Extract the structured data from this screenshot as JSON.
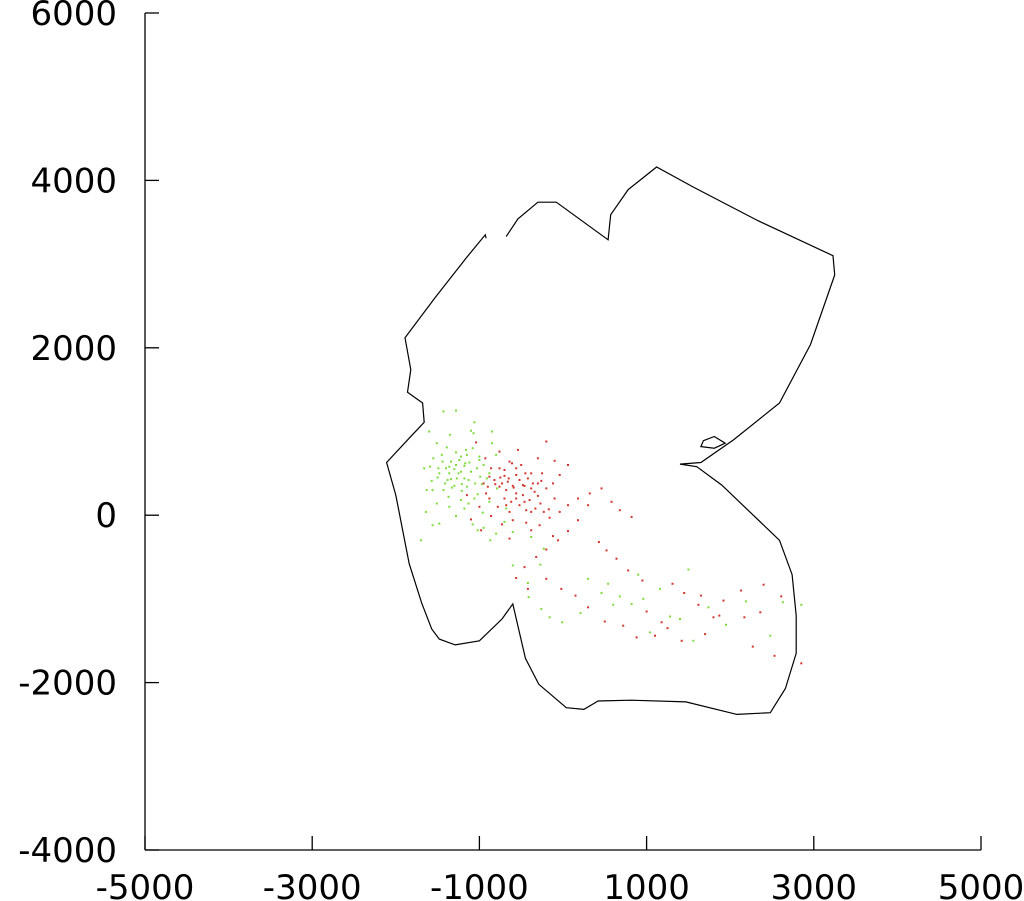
{
  "chart_data": {
    "type": "scatter",
    "title": "",
    "xlabel": "",
    "ylabel": "",
    "xlim": [
      -5000,
      5000
    ],
    "ylim": [
      -4000,
      6000
    ],
    "x_ticks": [
      -5000,
      -3000,
      -1000,
      1000,
      3000,
      5000
    ],
    "x_tick_labels": [
      "-5000",
      "-3000",
      "-1000",
      "1000",
      "3000",
      "5000"
    ],
    "y_ticks": [
      -4000,
      -2000,
      0,
      2000,
      4000,
      6000
    ],
    "y_tick_labels": [
      "-4000",
      "-2000",
      "0",
      "2000",
      "4000",
      "6000"
    ],
    "grid": false,
    "legend": false,
    "colors": {
      "axis": "#000000",
      "outline": "#000000",
      "series_green": "#7ddc3c",
      "series_red": "#d2362e"
    },
    "outline": [
      [
        -680,
        3330
      ],
      [
        -540,
        3540
      ],
      [
        -300,
        3740
      ],
      [
        -80,
        3740
      ],
      [
        540,
        3290
      ],
      [
        570,
        3590
      ],
      [
        780,
        3890
      ],
      [
        1120,
        4160
      ],
      [
        1560,
        3920
      ],
      [
        2330,
        3520
      ],
      [
        3230,
        3100
      ],
      [
        3250,
        2870
      ],
      [
        2960,
        2040
      ],
      [
        2590,
        1340
      ],
      [
        2040,
        900
      ],
      [
        1650,
        630
      ],
      [
        1400,
        610
      ],
      [
        1600,
        580
      ],
      [
        1900,
        360
      ],
      [
        2590,
        -300
      ],
      [
        2740,
        -710
      ],
      [
        2790,
        -1200
      ],
      [
        2790,
        -1650
      ],
      [
        2660,
        -2070
      ],
      [
        2480,
        -2360
      ],
      [
        2080,
        -2380
      ],
      [
        1470,
        -2230
      ],
      [
        810,
        -2210
      ],
      [
        420,
        -2220
      ],
      [
        250,
        -2320
      ],
      [
        40,
        -2300
      ],
      [
        -290,
        -2020
      ],
      [
        -450,
        -1710
      ],
      [
        -600,
        -1060
      ],
      [
        -730,
        -1240
      ],
      [
        -1000,
        -1500
      ],
      [
        -1290,
        -1550
      ],
      [
        -1480,
        -1480
      ],
      [
        -1570,
        -1360
      ],
      [
        -1690,
        -1050
      ],
      [
        -1840,
        -580
      ],
      [
        -2000,
        240
      ],
      [
        -2110,
        630
      ],
      [
        -1840,
        920
      ],
      [
        -1660,
        1110
      ],
      [
        -1680,
        1340
      ],
      [
        -1860,
        1470
      ],
      [
        -1820,
        1740
      ],
      [
        -1890,
        2120
      ],
      [
        -1530,
        2600
      ],
      [
        -1160,
        3070
      ],
      [
        -930,
        3350
      ],
      [
        -920,
        3310
      ]
    ],
    "hole": [
      [
        1680,
        890
      ],
      [
        1810,
        940
      ],
      [
        1940,
        860
      ],
      [
        1810,
        800
      ],
      [
        1650,
        820
      ]
    ],
    "series": [
      {
        "values": [
          [
            -1600,
            1000
          ],
          [
            -1430,
            1240
          ],
          [
            -1280,
            1250
          ],
          [
            -1060,
            1110
          ],
          [
            -1160,
            780
          ],
          [
            -1390,
            810
          ],
          [
            -1550,
            680
          ],
          [
            -1660,
            560
          ],
          [
            -1490,
            560
          ],
          [
            -1360,
            500
          ],
          [
            -1570,
            410
          ],
          [
            -1630,
            300
          ],
          [
            -1370,
            220
          ],
          [
            -1510,
            140
          ],
          [
            -1640,
            40
          ],
          [
            -1700,
            -300
          ],
          [
            -1280,
            600
          ],
          [
            -1300,
            350
          ],
          [
            -1340,
            640
          ],
          [
            -1450,
            720
          ],
          [
            -1210,
            290
          ],
          [
            -1180,
            590
          ],
          [
            -1130,
            420
          ],
          [
            -1060,
            200
          ],
          [
            -970,
            370
          ],
          [
            -950,
            600
          ],
          [
            -880,
            500
          ],
          [
            -1000,
            660
          ],
          [
            -1150,
            720
          ],
          [
            -1380,
            420
          ],
          [
            -1430,
            300
          ],
          [
            -1180,
            80
          ],
          [
            -1280,
            -10
          ],
          [
            -1480,
            -100
          ],
          [
            -1560,
            -120
          ],
          [
            -1080,
            -110
          ],
          [
            -950,
            -150
          ],
          [
            -870,
            -300
          ],
          [
            -1020,
            -180
          ],
          [
            -800,
            720
          ],
          [
            -850,
            860
          ],
          [
            -1070,
            980
          ],
          [
            -1350,
            960
          ],
          [
            -1510,
            860
          ],
          [
            -1220,
            520
          ],
          [
            -1100,
            520
          ],
          [
            -1340,
            430
          ],
          [
            -1400,
            560
          ],
          [
            -1240,
            660
          ],
          [
            -1500,
            450
          ],
          [
            -1270,
            440
          ],
          [
            -1180,
            440
          ],
          [
            -1120,
            630
          ],
          [
            -1440,
            640
          ],
          [
            -1280,
            750
          ],
          [
            -1030,
            560
          ],
          [
            -910,
            440
          ],
          [
            -1210,
            370
          ],
          [
            -1330,
            330
          ],
          [
            -1150,
            340
          ],
          [
            -1050,
            380
          ],
          [
            -990,
            460
          ],
          [
            -1360,
            580
          ],
          [
            -1220,
            700
          ],
          [
            -1080,
            800
          ],
          [
            -1590,
            580
          ],
          [
            -1480,
            500
          ],
          [
            -1560,
            300
          ],
          [
            -1220,
            180
          ],
          [
            -1130,
            140
          ],
          [
            -1020,
            250
          ],
          [
            -1360,
            100
          ],
          [
            -1250,
            500
          ],
          [
            -1410,
            380
          ],
          [
            -1170,
            620
          ],
          [
            -1300,
            550
          ],
          [
            -1000,
            700
          ],
          [
            -790,
            320
          ],
          [
            -380,
            -260
          ],
          [
            -230,
            -400
          ],
          [
            -270,
            -590
          ],
          [
            -420,
            -810
          ],
          [
            -410,
            -980
          ],
          [
            -260,
            -1120
          ],
          [
            -160,
            -1220
          ],
          [
            -10,
            -1280
          ],
          [
            210,
            -1170
          ],
          [
            460,
            -930
          ],
          [
            820,
            -1060
          ],
          [
            960,
            -1000
          ],
          [
            1160,
            -880
          ],
          [
            1280,
            -1210
          ],
          [
            1560,
            -1500
          ],
          [
            1950,
            -1310
          ],
          [
            2190,
            -1030
          ],
          [
            2480,
            -1440
          ],
          [
            2630,
            -1040
          ],
          [
            2850,
            -1070
          ],
          [
            1740,
            -1100
          ],
          [
            1400,
            -1240
          ],
          [
            1040,
            -1400
          ],
          [
            680,
            -970
          ],
          [
            540,
            -820
          ],
          [
            1500,
            -650
          ],
          [
            900,
            -710
          ],
          [
            600,
            -1070
          ],
          [
            300,
            -760
          ],
          [
            -700,
            -80
          ],
          [
            -600,
            -200
          ],
          [
            -800,
            -220
          ],
          [
            -960,
            30
          ],
          [
            -680,
            80
          ],
          [
            -880,
            160
          ],
          [
            -600,
            -600
          ],
          [
            -850,
            1000
          ],
          [
            -1100,
            1010
          ]
        ]
      },
      {
        "values": [
          [
            -1040,
            870
          ],
          [
            -930,
            680
          ],
          [
            -760,
            560
          ],
          [
            -640,
            640
          ],
          [
            -560,
            480
          ],
          [
            -460,
            350
          ],
          [
            -340,
            280
          ],
          [
            -270,
            140
          ],
          [
            -170,
            70
          ],
          [
            -100,
            200
          ],
          [
            -260,
            410
          ],
          [
            -380,
            500
          ],
          [
            -500,
            600
          ],
          [
            -650,
            440
          ],
          [
            -760,
            340
          ],
          [
            -880,
            200
          ],
          [
            -1000,
            100
          ],
          [
            -950,
            380
          ],
          [
            -700,
            200
          ],
          [
            -600,
            350
          ],
          [
            -480,
            240
          ],
          [
            -520,
            120
          ],
          [
            -640,
            40
          ],
          [
            -780,
            100
          ],
          [
            -820,
            420
          ],
          [
            -700,
            540
          ],
          [
            -560,
            560
          ],
          [
            -420,
            440
          ],
          [
            -300,
            380
          ],
          [
            -400,
            180
          ],
          [
            -560,
            260
          ],
          [
            -680,
            300
          ],
          [
            -750,
            450
          ],
          [
            -860,
            560
          ],
          [
            -620,
            160
          ],
          [
            -480,
            360
          ],
          [
            -380,
            320
          ],
          [
            -440,
            60
          ],
          [
            -330,
            80
          ],
          [
            -200,
            320
          ],
          [
            -120,
            380
          ],
          [
            -40,
            480
          ],
          [
            60,
            600
          ],
          [
            -100,
            650
          ],
          [
            -250,
            500
          ],
          [
            -860,
            -10
          ],
          [
            -730,
            -110
          ],
          [
            -600,
            -60
          ],
          [
            -440,
            -90
          ],
          [
            -280,
            -120
          ],
          [
            -160,
            -30
          ],
          [
            -40,
            40
          ],
          [
            60,
            120
          ],
          [
            180,
            200
          ],
          [
            320,
            260
          ],
          [
            460,
            320
          ],
          [
            580,
            160
          ],
          [
            680,
            60
          ],
          [
            820,
            -20
          ],
          [
            300,
            120
          ],
          [
            180,
            -60
          ],
          [
            60,
            -190
          ],
          [
            -60,
            -300
          ],
          [
            -200,
            -410
          ],
          [
            -320,
            -500
          ],
          [
            -460,
            -620
          ],
          [
            -560,
            -750
          ],
          [
            -420,
            -880
          ],
          [
            -200,
            -760
          ],
          [
            -20,
            -880
          ],
          [
            150,
            -960
          ],
          [
            300,
            -1100
          ],
          [
            500,
            -1270
          ],
          [
            720,
            -1320
          ],
          [
            880,
            -1460
          ],
          [
            1100,
            -1440
          ],
          [
            1250,
            -1350
          ],
          [
            1420,
            -1500
          ],
          [
            1700,
            -1420
          ],
          [
            1870,
            -1200
          ],
          [
            1920,
            -1020
          ],
          [
            2130,
            -900
          ],
          [
            2400,
            -830
          ],
          [
            2610,
            -970
          ],
          [
            2360,
            -1160
          ],
          [
            2170,
            -1220
          ],
          [
            950,
            -780
          ],
          [
            780,
            -660
          ],
          [
            640,
            -520
          ],
          [
            520,
            -420
          ],
          [
            430,
            -320
          ],
          [
            1310,
            -820
          ],
          [
            1450,
            -930
          ],
          [
            1620,
            -1070
          ],
          [
            1800,
            -1220
          ],
          [
            1000,
            -1150
          ],
          [
            2270,
            -1570
          ],
          [
            2530,
            -1680
          ],
          [
            2850,
            -1770
          ],
          [
            1180,
            -1280
          ],
          [
            1650,
            -960
          ],
          [
            -980,
            -180
          ],
          [
            -920,
            260
          ],
          [
            -640,
            -280
          ],
          [
            -380,
            -180
          ],
          [
            -120,
            -250
          ],
          [
            -540,
            780
          ],
          [
            -300,
            680
          ],
          [
            -200,
            880
          ],
          [
            -760,
            760
          ],
          [
            -1100,
            -50
          ],
          [
            -1150,
            240
          ],
          [
            -880,
            460
          ],
          [
            -810,
            370
          ],
          [
            -730,
            380
          ],
          [
            -660,
            400
          ],
          [
            -590,
            330
          ],
          [
            -520,
            420
          ],
          [
            -450,
            500
          ],
          [
            -360,
            380
          ],
          [
            -300,
            230
          ],
          [
            -680,
            120
          ],
          [
            -560,
            200
          ],
          [
            -460,
            160
          ],
          [
            -380,
            40
          ],
          [
            -230,
            40
          ],
          [
            -900,
            340
          ],
          [
            -700,
            470
          ],
          [
            -610,
            620
          ]
        ]
      }
    ]
  }
}
